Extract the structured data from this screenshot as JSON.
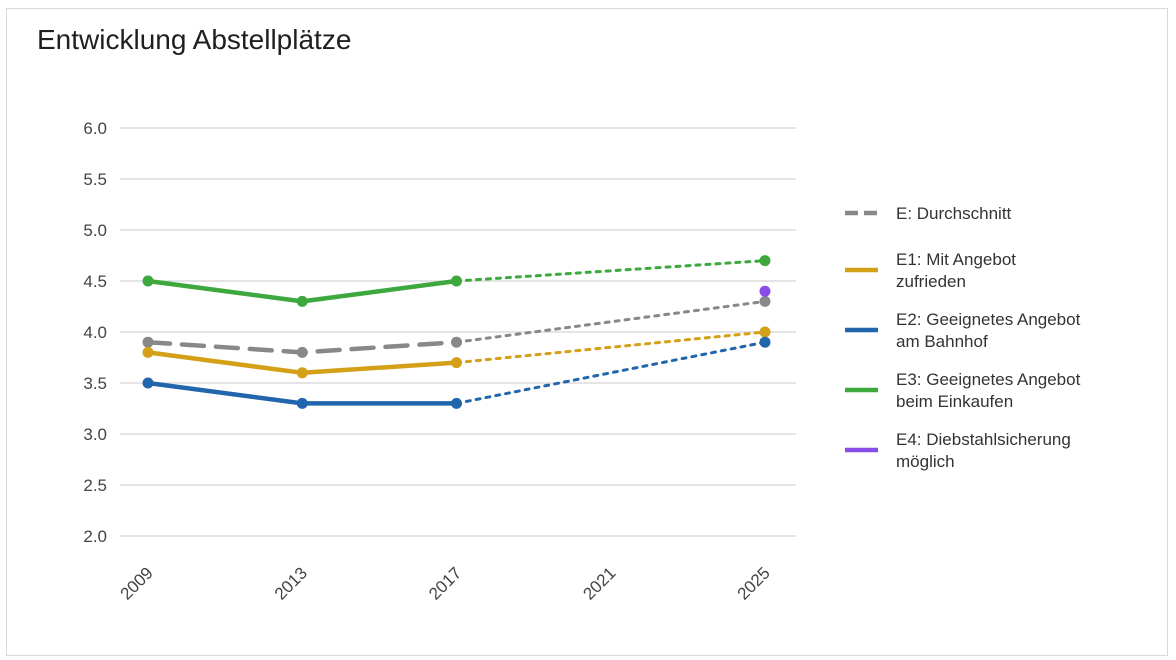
{
  "chart_data": {
    "type": "line",
    "title": "Entwicklung Abstellplätze",
    "xlabel": "",
    "ylabel": "",
    "categories": [
      "2009",
      "2013",
      "2017",
      "2021",
      "2025"
    ],
    "ylim": [
      2.0,
      6.0
    ],
    "yticks": [
      "2.0",
      "2.5",
      "3.0",
      "3.5",
      "4.0",
      "4.5",
      "5.0",
      "5.5",
      "6.0"
    ],
    "grid": true,
    "legend_position": "right",
    "series": [
      {
        "name": "E: Durchschnitt",
        "color": "#888888",
        "style": "dashed",
        "values": [
          3.9,
          3.8,
          3.9,
          null,
          4.3
        ],
        "projection_from": "2017"
      },
      {
        "name": "E1: Mit Angebot zufrieden",
        "legend_lines": [
          "E1: Mit Angebot",
          "zufrieden"
        ],
        "color": "#D4A017",
        "style": "solid",
        "values": [
          3.8,
          3.6,
          3.7,
          null,
          4.0
        ],
        "projection_from": "2017"
      },
      {
        "name": "E2: Geeignetes Angebot am Bahnhof",
        "legend_lines": [
          "E2: Geeignetes Angebot",
          "am Bahnhof"
        ],
        "color": "#2166AC",
        "style": "solid",
        "values": [
          3.5,
          3.3,
          3.3,
          null,
          3.9
        ],
        "projection_from": "2017"
      },
      {
        "name": "E3: Geeignetes Angebot beim Einkaufen",
        "legend_lines": [
          "E3: Geeignetes Angebot",
          "beim Einkaufen"
        ],
        "color": "#3DA83D",
        "style": "solid",
        "values": [
          4.5,
          4.3,
          4.5,
          null,
          4.7
        ],
        "projection_from": "2017"
      },
      {
        "name": "E4: Diebstahlsicherung möglich",
        "legend_lines": [
          "E4: Diebstahlsicherung",
          "möglich"
        ],
        "color": "#8B4DE8",
        "style": "solid",
        "values": [
          null,
          null,
          null,
          null,
          4.4
        ]
      }
    ]
  }
}
